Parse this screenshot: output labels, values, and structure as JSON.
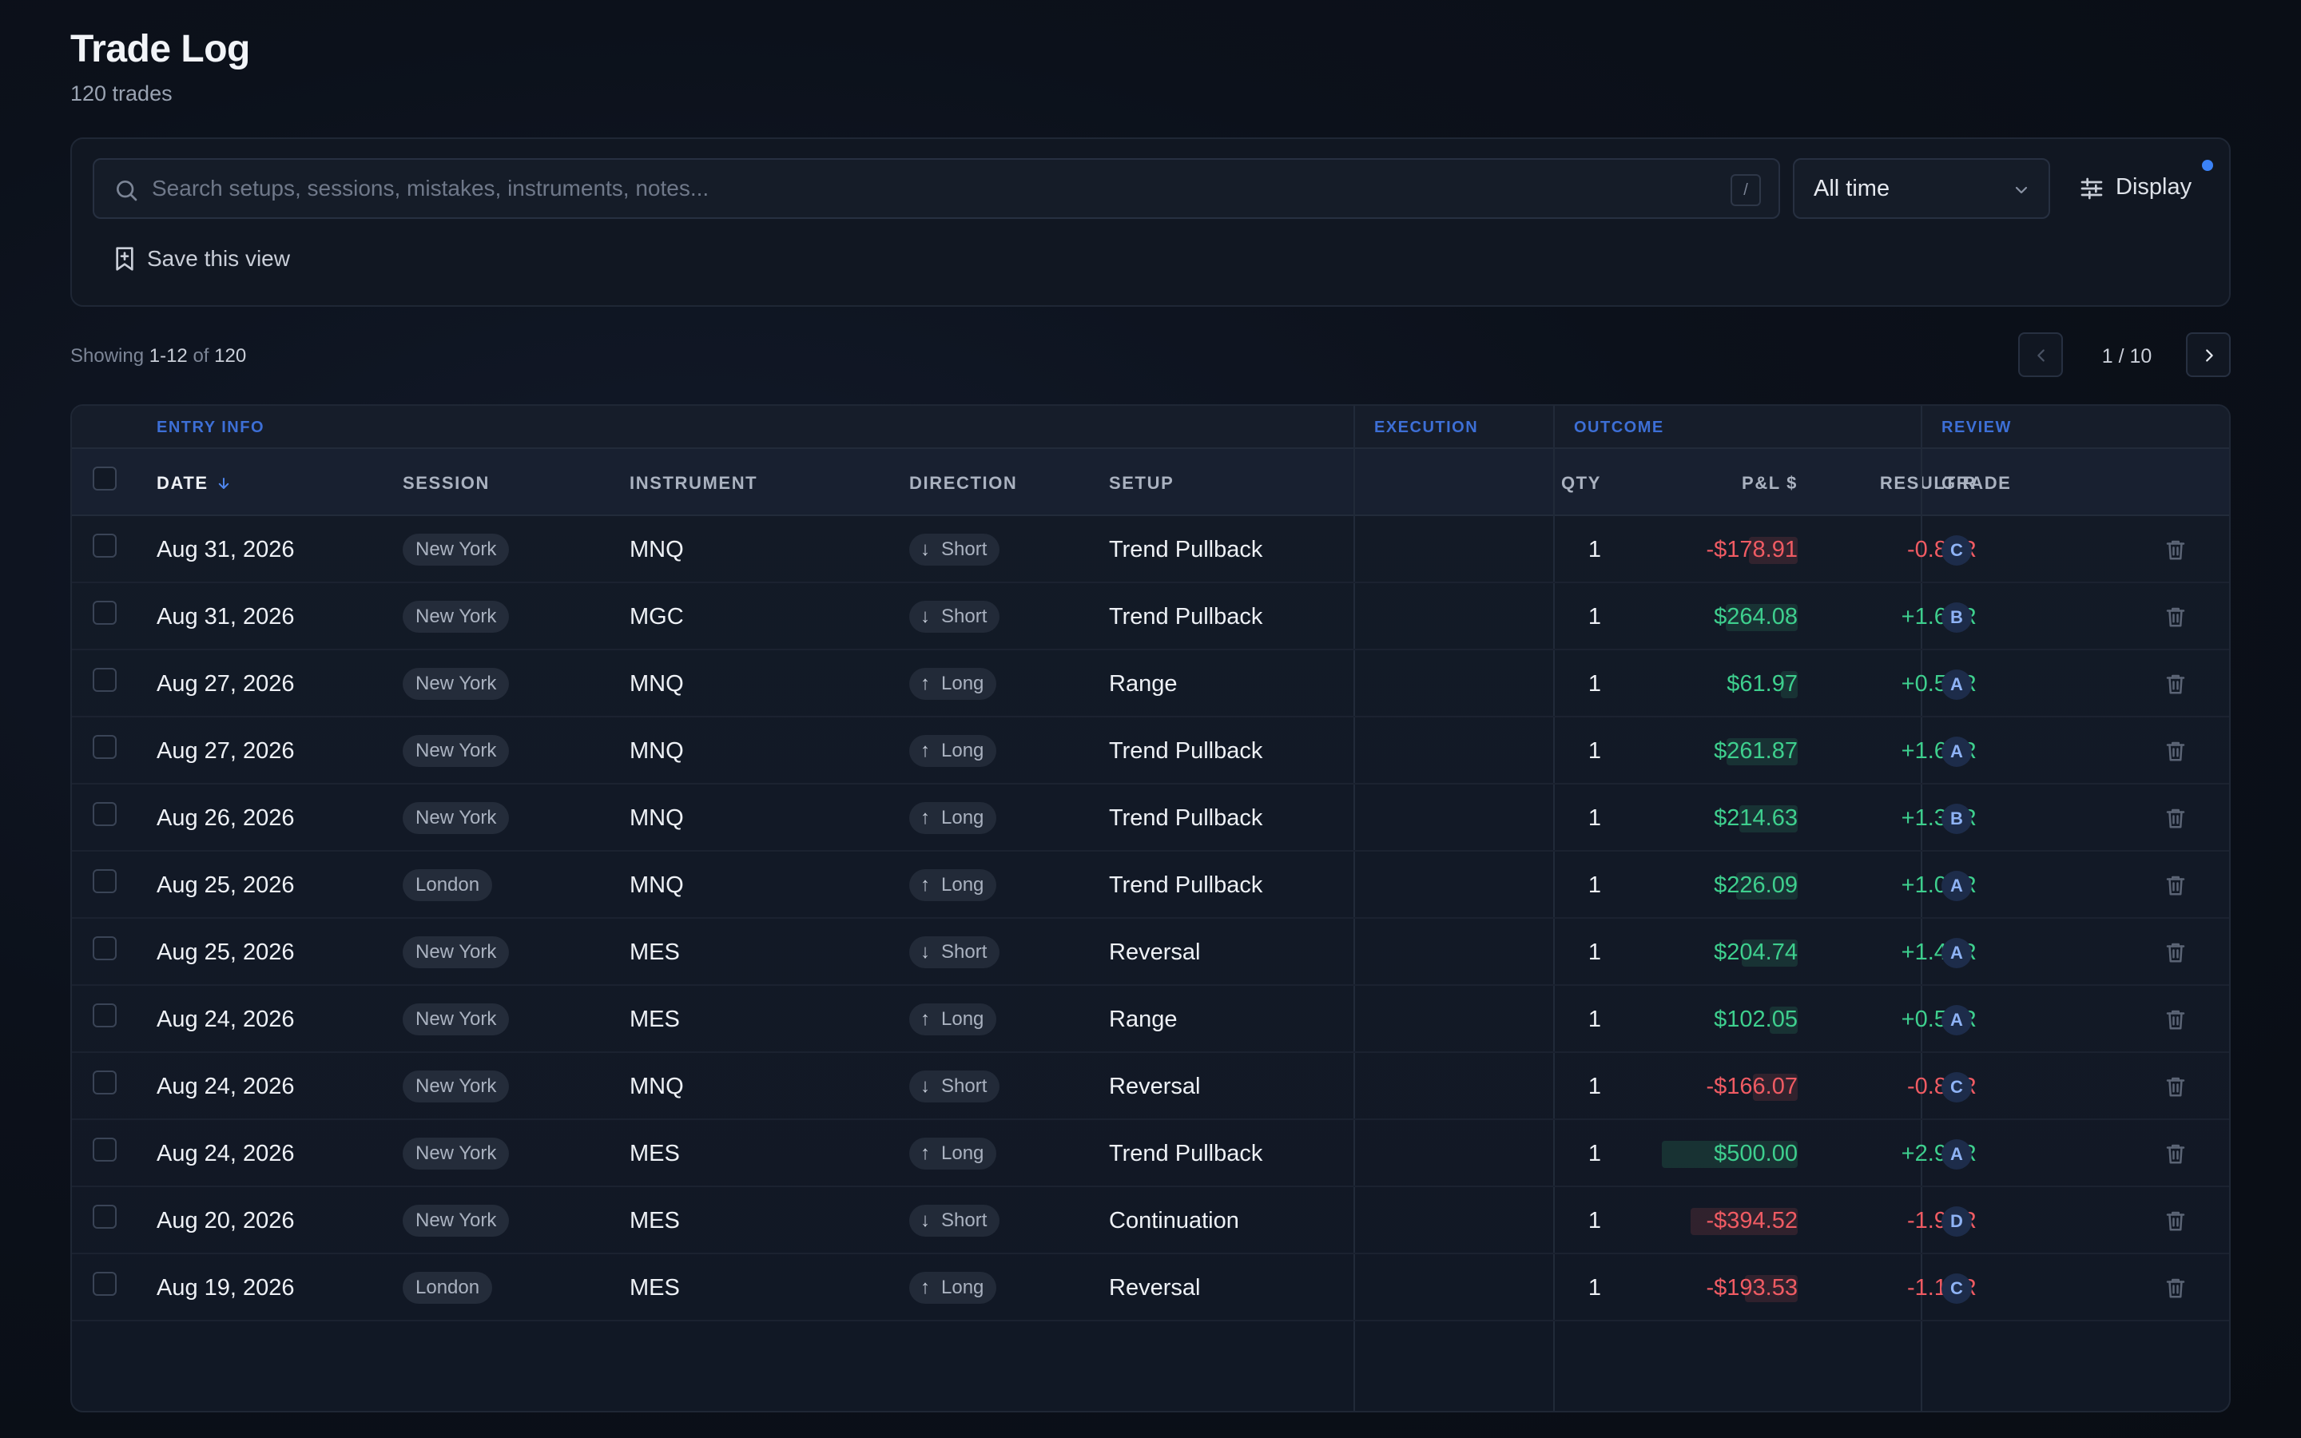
{
  "page": {
    "title": "Trade Log",
    "subtitle": "120 trades"
  },
  "toolbar": {
    "search_placeholder": "Search setups, sessions, mistakes, instruments, notes...",
    "search_value": "",
    "shortcut_key": "/",
    "time_filter": "All time",
    "display_label": "Display",
    "save_view_label": "Save this view",
    "accent_color": "#3b82f6"
  },
  "pagination": {
    "showing_prefix": "Showing",
    "range": "1-12",
    "of_label": "of",
    "total": "120",
    "page_text": "1 / 10"
  },
  "table": {
    "groups": {
      "entry": "ENTRY INFO",
      "execution": "EXECUTION",
      "outcome": "OUTCOME",
      "review": "REVIEW"
    },
    "columns": {
      "date": "DATE",
      "session": "SESSION",
      "instrument": "INSTRUMENT",
      "direction": "DIRECTION",
      "setup": "SETUP",
      "qty": "QTY",
      "pnl": "P&L $",
      "result": "RESULT R",
      "grade": "GRADE"
    },
    "rows": [
      {
        "date": "Aug 31, 2026",
        "session": "New York",
        "instrument": "MNQ",
        "direction": "Short",
        "setup": "Trend Pullback",
        "qty": "1",
        "pnl": "-$178.91",
        "result": "-0.83R",
        "grade": "C"
      },
      {
        "date": "Aug 31, 2026",
        "session": "New York",
        "instrument": "MGC",
        "direction": "Short",
        "setup": "Trend Pullback",
        "qty": "1",
        "pnl": "$264.08",
        "result": "+1.61R",
        "grade": "B"
      },
      {
        "date": "Aug 27, 2026",
        "session": "New York",
        "instrument": "MNQ",
        "direction": "Long",
        "setup": "Range",
        "qty": "1",
        "pnl": "$61.97",
        "result": "+0.56R",
        "grade": "A"
      },
      {
        "date": "Aug 27, 2026",
        "session": "New York",
        "instrument": "MNQ",
        "direction": "Long",
        "setup": "Trend Pullback",
        "qty": "1",
        "pnl": "$261.87",
        "result": "+1.66R",
        "grade": "A"
      },
      {
        "date": "Aug 26, 2026",
        "session": "New York",
        "instrument": "MNQ",
        "direction": "Long",
        "setup": "Trend Pullback",
        "qty": "1",
        "pnl": "$214.63",
        "result": "+1.32R",
        "grade": "B"
      },
      {
        "date": "Aug 25, 2026",
        "session": "London",
        "instrument": "MNQ",
        "direction": "Long",
        "setup": "Trend Pullback",
        "qty": "1",
        "pnl": "$226.09",
        "result": "+1.00R",
        "grade": "A"
      },
      {
        "date": "Aug 25, 2026",
        "session": "New York",
        "instrument": "MES",
        "direction": "Short",
        "setup": "Reversal",
        "qty": "1",
        "pnl": "$204.74",
        "result": "+1.49R",
        "grade": "A"
      },
      {
        "date": "Aug 24, 2026",
        "session": "New York",
        "instrument": "MES",
        "direction": "Long",
        "setup": "Range",
        "qty": "1",
        "pnl": "$102.05",
        "result": "+0.56R",
        "grade": "A"
      },
      {
        "date": "Aug 24, 2026",
        "session": "New York",
        "instrument": "MNQ",
        "direction": "Short",
        "setup": "Reversal",
        "qty": "1",
        "pnl": "-$166.07",
        "result": "-0.87R",
        "grade": "C"
      },
      {
        "date": "Aug 24, 2026",
        "session": "New York",
        "instrument": "MES",
        "direction": "Long",
        "setup": "Trend Pullback",
        "qty": "1",
        "pnl": "$500.00",
        "result": "+2.92R",
        "grade": "A"
      },
      {
        "date": "Aug 20, 2026",
        "session": "New York",
        "instrument": "MES",
        "direction": "Short",
        "setup": "Continuation",
        "qty": "1",
        "pnl": "-$394.52",
        "result": "-1.96R",
        "grade": "D"
      },
      {
        "date": "Aug 19, 2026",
        "session": "London",
        "instrument": "MES",
        "direction": "Long",
        "setup": "Reversal",
        "qty": "1",
        "pnl": "-$193.53",
        "result": "-1.15R",
        "grade": "C"
      }
    ]
  },
  "colors": {
    "positive": "#3ecf8e",
    "negative": "#ef5b63",
    "group_label": "#3d6fd6"
  },
  "icons": {
    "search": "search-icon",
    "chevron": "chevron-down-icon",
    "display": "sliders-icon",
    "save": "bookmark-plus-icon",
    "sort": "arrow-down-icon",
    "trash": "trash-icon",
    "prev": "chevron-left-icon",
    "next": "chevron-right-icon"
  }
}
